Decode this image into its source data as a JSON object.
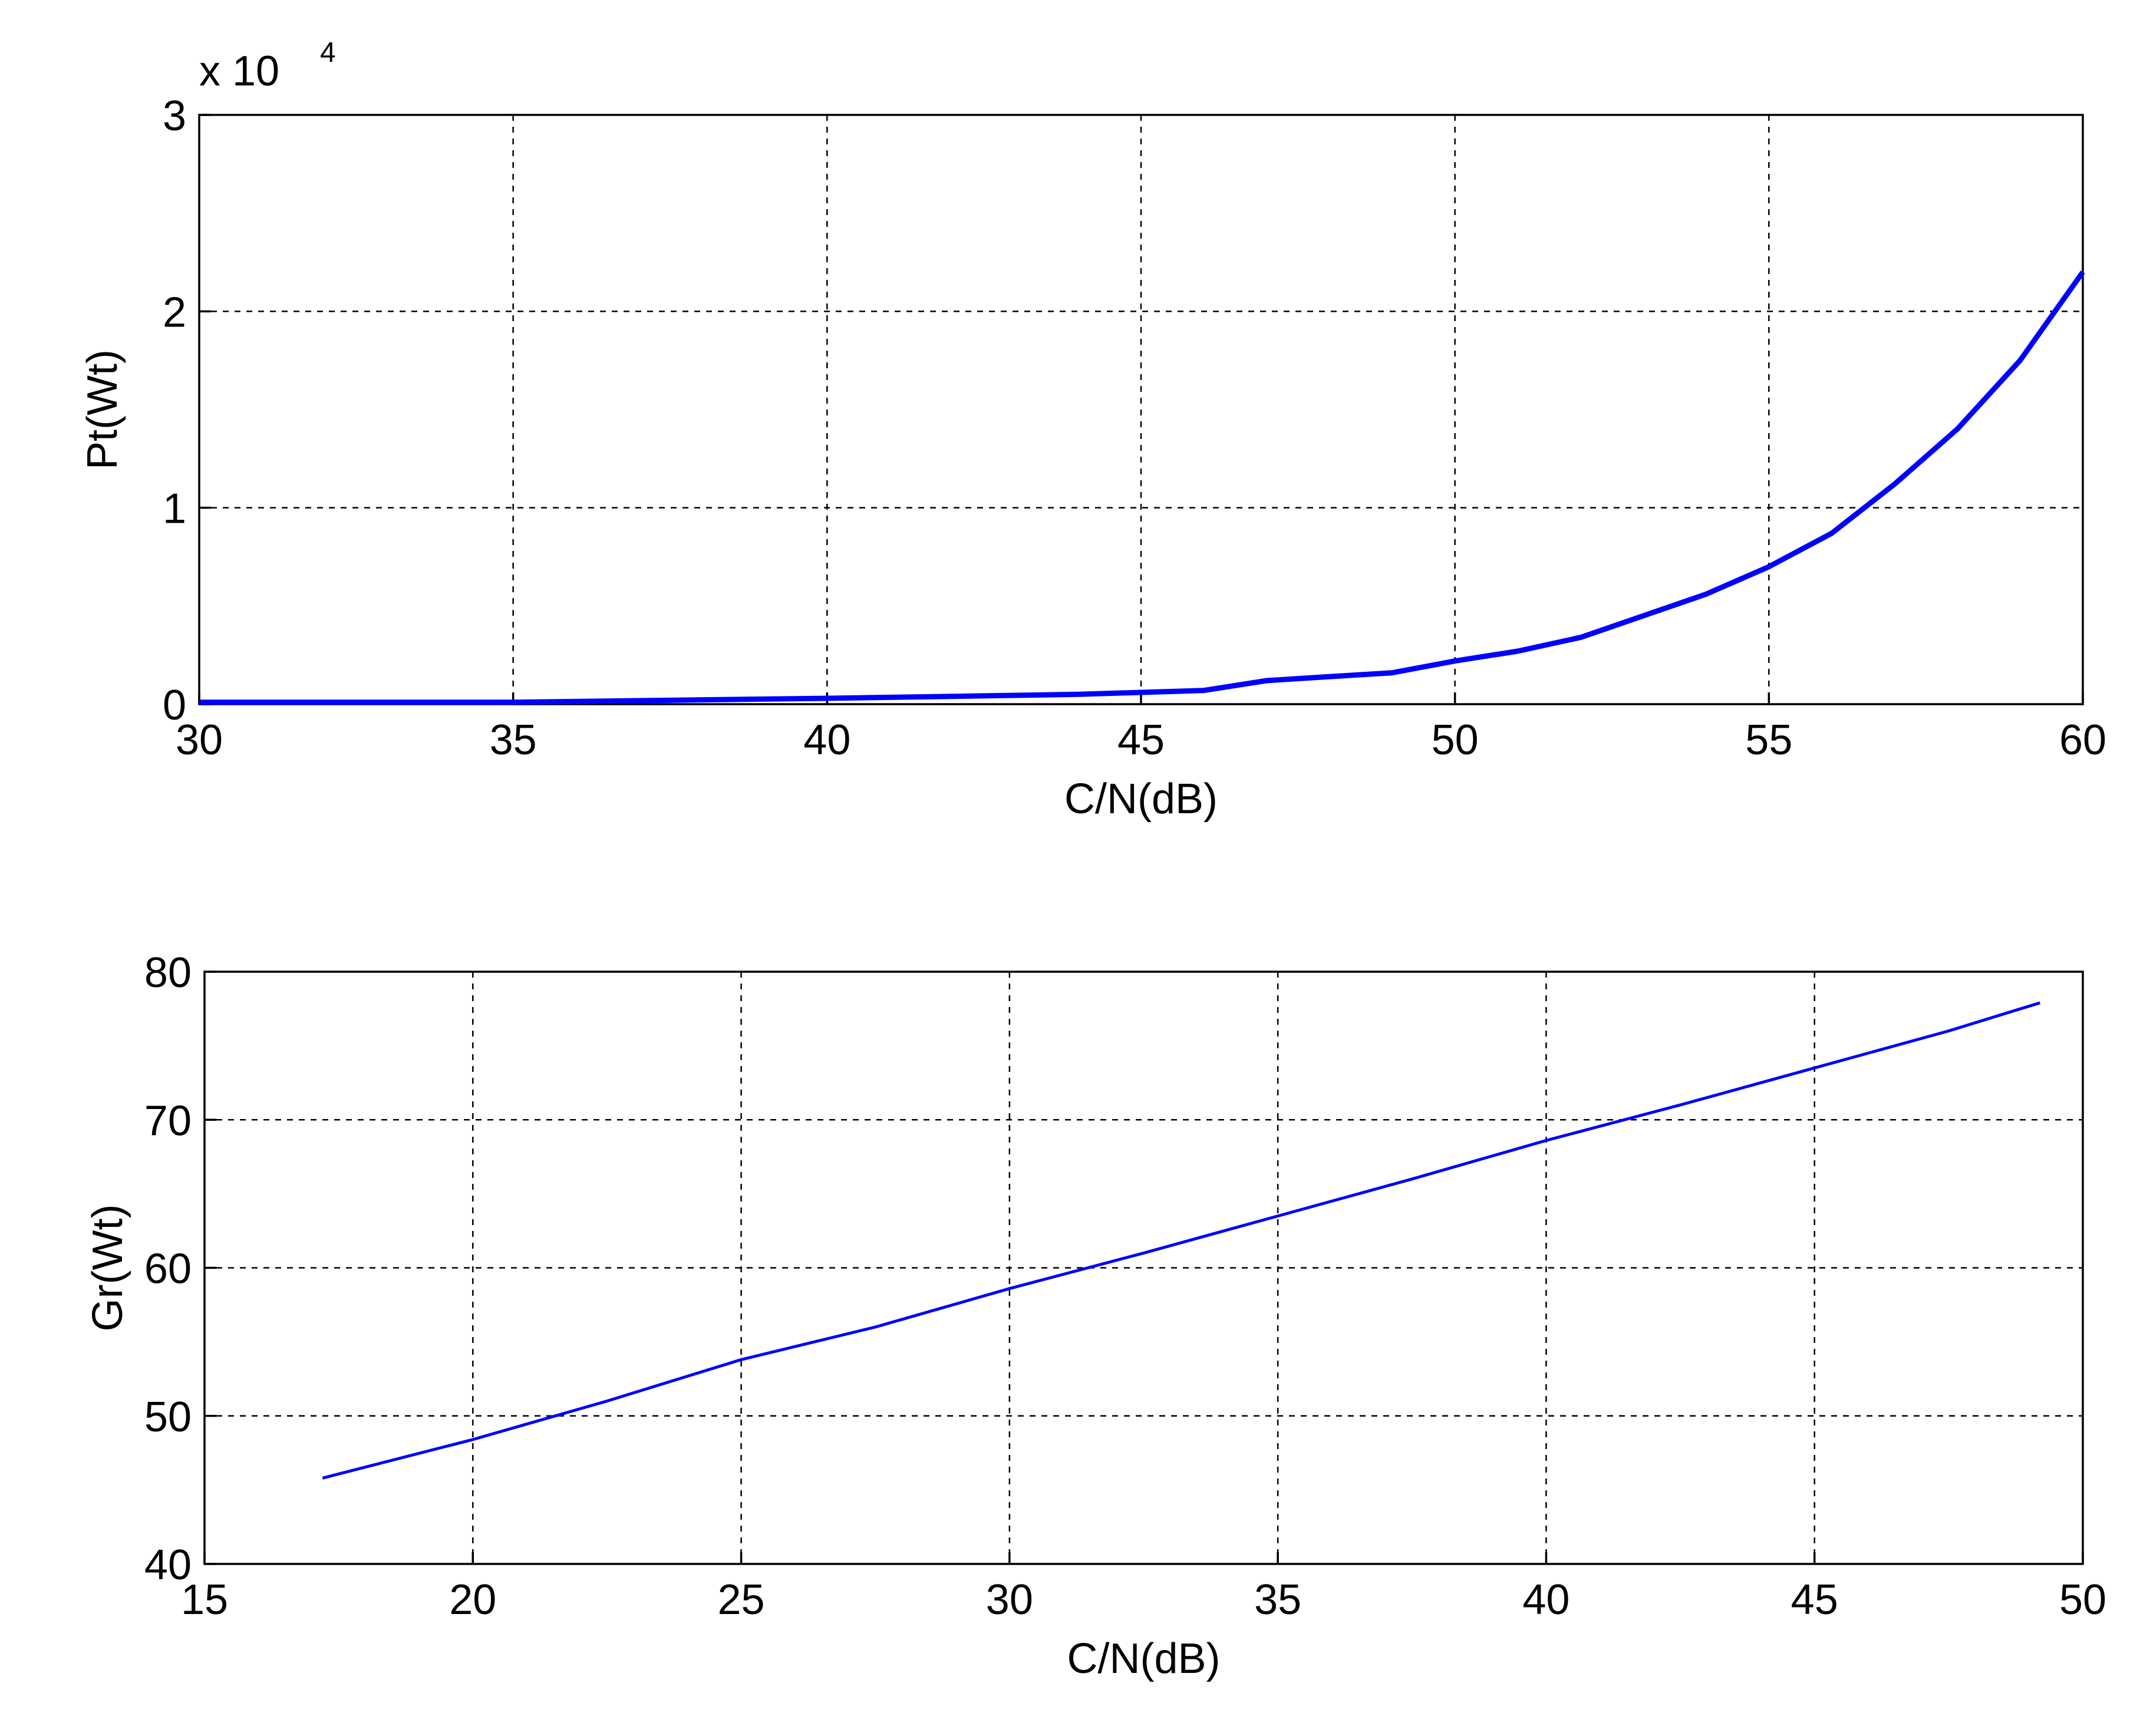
{
  "chart_data": [
    {
      "type": "line",
      "xlabel": "C/N(dB)",
      "ylabel": "Pt(Wt)",
      "y_scale_label": "x 10",
      "y_scale_exponent": "4",
      "x": [
        30,
        35,
        40,
        42,
        44,
        46,
        47,
        48,
        49,
        50,
        51,
        52,
        53,
        54,
        55,
        56,
        57,
        58,
        59,
        60
      ],
      "series": [
        {
          "color": "#0000ff",
          "values": [
            0.01,
            0.01,
            0.03,
            0.04,
            0.05,
            0.07,
            0.12,
            0.14,
            0.16,
            0.22,
            0.27,
            0.34,
            0.45,
            0.56,
            0.7,
            0.87,
            1.12,
            1.4,
            1.75,
            2.2
          ]
        }
      ],
      "xlim": [
        30,
        60
      ],
      "xticks": [
        30,
        35,
        40,
        45,
        50,
        55,
        60
      ],
      "ylim": [
        0,
        3
      ],
      "yticks": [
        0,
        1,
        2,
        3
      ],
      "grid": true
    },
    {
      "type": "line",
      "xlabel": "C/N(dB)",
      "ylabel": "Gr(Wt)",
      "x": [
        17.2,
        20,
        22.5,
        25,
        27.5,
        30,
        32.5,
        35,
        37.5,
        40,
        42.5,
        45,
        47.5,
        49.2
      ],
      "series": [
        {
          "color": "#0000ff",
          "values": [
            45.8,
            48.4,
            51,
            53.8,
            56,
            58.6,
            61,
            63.5,
            66,
            68.6,
            71,
            73.5,
            76,
            77.9
          ]
        }
      ],
      "xlim": [
        15,
        50
      ],
      "xticks": [
        15,
        20,
        25,
        30,
        35,
        40,
        45,
        50
      ],
      "ylim": [
        40,
        80
      ],
      "yticks": [
        40,
        50,
        60,
        70,
        80
      ],
      "grid": true
    }
  ]
}
